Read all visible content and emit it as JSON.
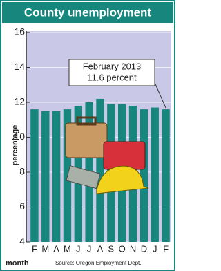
{
  "chart_data": {
    "type": "bar",
    "title": "County unemployment",
    "categories": [
      "F",
      "M",
      "A",
      "M",
      "J",
      "J",
      "A",
      "S",
      "O",
      "N",
      "D",
      "J",
      "F"
    ],
    "values": [
      11.6,
      11.5,
      11.5,
      11.6,
      11.8,
      12.0,
      12.2,
      11.9,
      11.9,
      11.8,
      11.6,
      11.7,
      11.6
    ],
    "color": "#17877d",
    "ylim": [
      4,
      16
    ],
    "yticks": [
      4,
      6,
      8,
      10,
      12,
      14,
      16
    ],
    "grid": true,
    "ylabel": "percentage",
    "xlabel": "month",
    "annotation": [
      "February 2013",
      "11.6 percent"
    ],
    "source": "Source: Oregon Employment Dept."
  }
}
